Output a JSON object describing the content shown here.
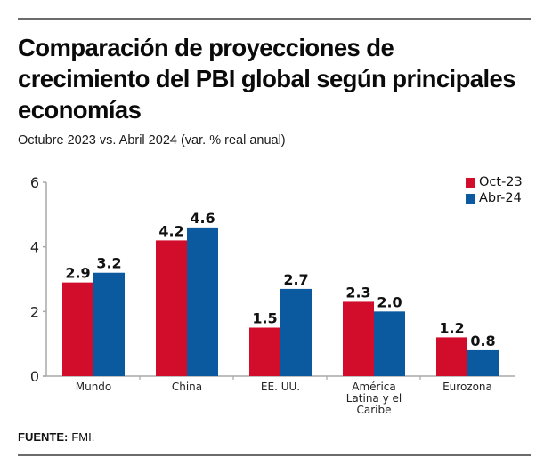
{
  "header": {
    "title": "Comparación de proyecciones de crecimiento del PBI global según principales economías",
    "subtitle": "Octubre 2023 vs. Abril 2024 (var. % real anual)"
  },
  "footer": {
    "source_label": "FUENTE:",
    "source_value": "FMI."
  },
  "colors": {
    "oct23": "#d20d2b",
    "abr24": "#0b5aa0",
    "axis": "#a8a8a8"
  },
  "chart_data": {
    "type": "bar",
    "title": "Comparación de proyecciones de crecimiento del PBI global según principales economías",
    "subtitle": "Octubre 2023 vs. Abril 2024 (var. % real anual)",
    "xlabel": "",
    "ylabel": "",
    "ylim": [
      0,
      6
    ],
    "yticks": [
      "0",
      "2",
      "4",
      "6"
    ],
    "grid": false,
    "legend_position": "top-right",
    "categories": [
      "Mundo",
      "China",
      "EE. UU.",
      "América Latina y el Caribe",
      "Eurozona"
    ],
    "category_label_lines": [
      [
        "Mundo"
      ],
      [
        "China"
      ],
      [
        "EE. UU."
      ],
      [
        "América",
        "Latina y el",
        "Caribe"
      ],
      [
        "Eurozona"
      ]
    ],
    "series": [
      {
        "name": "Oct-23",
        "values": [
          2.9,
          4.2,
          1.5,
          2.3,
          1.2
        ],
        "labels": [
          "2.9",
          "4.2",
          "1.5",
          "2.3",
          "1.2"
        ]
      },
      {
        "name": "Abr-24",
        "values": [
          3.2,
          4.6,
          2.7,
          2.0,
          0.8
        ],
        "labels": [
          "3.2",
          "4.6",
          "2.7",
          "2.0",
          "0.8"
        ]
      }
    ]
  }
}
